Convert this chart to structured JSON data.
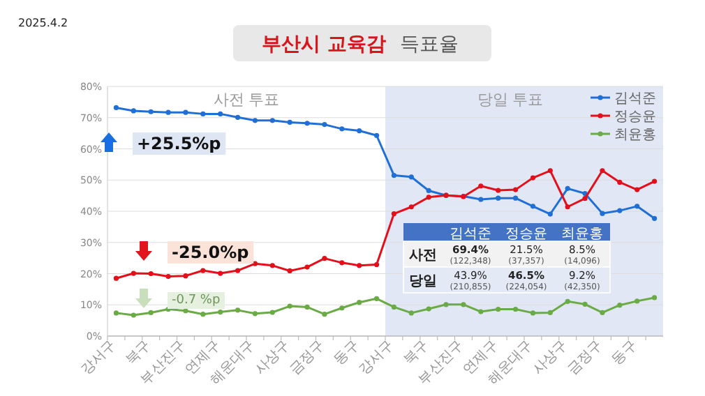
{
  "chart_data": {
    "type": "line",
    "title": "부산시 교육감",
    "subtitle": "득표율",
    "categories": [
      "강서구",
      null,
      "북구",
      null,
      "부산진구",
      null,
      "연제구",
      null,
      "해운대구",
      null,
      "사상구",
      null,
      "금정구",
      null,
      "동구",
      null,
      "강서구",
      null,
      "북구",
      null,
      "부산진구",
      null,
      "연제구",
      null,
      "해운대구",
      null,
      "사상구",
      null,
      "금정구",
      null,
      "동구",
      null
    ],
    "series": [
      {
        "name": "김석준",
        "color": "#1f6fd6",
        "values": [
          73.2,
          72.2,
          71.9,
          71.7,
          71.7,
          71.2,
          71.2,
          70.1,
          69.1,
          69.1,
          68.5,
          68.2,
          67.8,
          66.4,
          65.8,
          64.3,
          51.5,
          51.0,
          46.6,
          45.1,
          44.8,
          43.8,
          44.2,
          44.2,
          41.6,
          39.1,
          47.3,
          45.7,
          39.3,
          40.2,
          41.6,
          37.7
        ]
      },
      {
        "name": "정승윤",
        "color": "#e3101c",
        "values": [
          18.5,
          20.1,
          20.0,
          19.1,
          19.3,
          21.0,
          20.1,
          21.0,
          23.2,
          22.6,
          20.9,
          22.1,
          24.9,
          23.5,
          22.6,
          22.9,
          39.2,
          41.4,
          44.5,
          45.1,
          44.7,
          48.1,
          46.7,
          46.9,
          50.7,
          53.0,
          41.4,
          44.1,
          53.0,
          49.3,
          46.9,
          49.6
        ]
      },
      {
        "name": "최윤홍",
        "color": "#6aab45",
        "values": [
          7.4,
          6.7,
          7.5,
          8.6,
          8.1,
          7.0,
          7.7,
          8.3,
          7.2,
          7.6,
          9.6,
          9.3,
          7.0,
          9.0,
          10.8,
          12.0,
          9.3,
          7.4,
          8.7,
          10.1,
          10.1,
          7.8,
          8.6,
          8.6,
          7.4,
          7.5,
          11.1,
          10.2,
          7.5,
          9.9,
          11.2,
          12.3
        ]
      }
    ],
    "ylim": [
      0,
      80
    ],
    "yticks": [
      {
        "value": 0,
        "label": "0%"
      },
      {
        "value": 10,
        "label": "10%"
      },
      {
        "value": 20,
        "label": "20%"
      },
      {
        "value": 30,
        "label": "30%"
      },
      {
        "value": 40,
        "label": "40%"
      },
      {
        "value": 50,
        "label": "50%"
      },
      {
        "value": 60,
        "label": "60%"
      },
      {
        "value": 70,
        "label": "70%"
      },
      {
        "value": 80,
        "label": "80%"
      }
    ],
    "annotations": [
      "2025.4.2",
      "+25.5%p",
      "-25.0%p",
      "-0.7 %p",
      "김석준",
      "정승윤",
      "최윤홍",
      "사전",
      "69.4%",
      "(122,348)",
      "21.5%",
      "(37,357)",
      "8.5%",
      "(14,096)",
      "당일",
      "43.9%",
      "(210,855)",
      "46.5%",
      "(224,054)",
      "9.2%",
      "(42,350)",
      "사전 투표",
      "당일 투표"
    ],
    "grid": "y",
    "legend": "top right",
    "marker": "circle",
    "line_style": "solid"
  }
}
